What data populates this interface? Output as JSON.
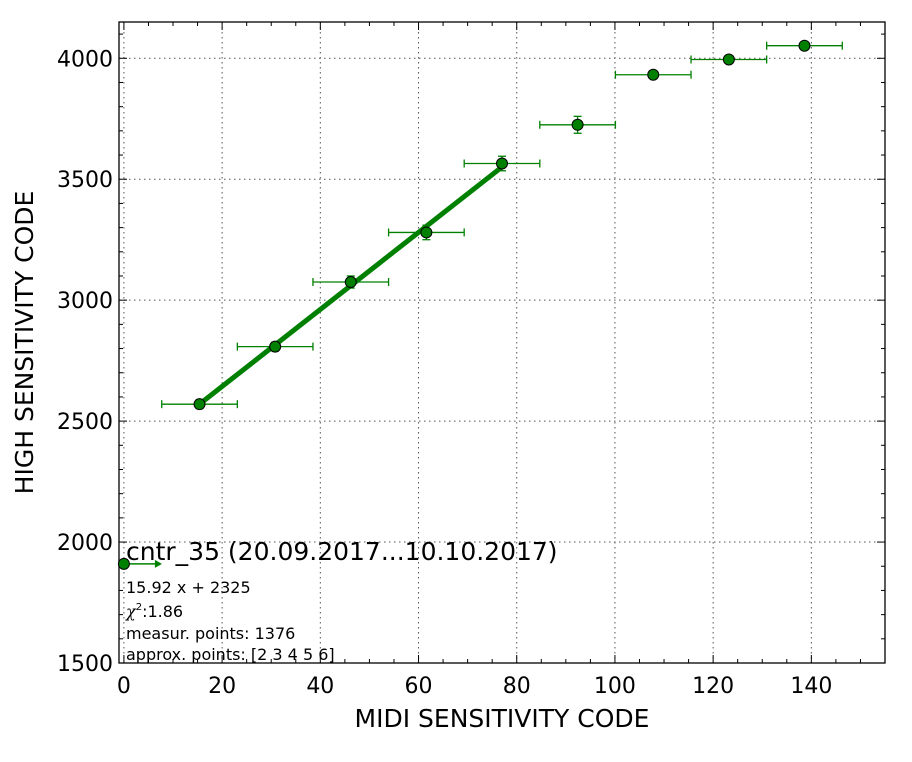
{
  "chart_data": {
    "type": "scatter",
    "xlabel": "MIDI SENSITIVITY CODE",
    "ylabel": "HIGH SENSITIVITY CODE",
    "xlim": [
      -1,
      155
    ],
    "ylim": [
      1500,
      4150
    ],
    "x_ticks": [
      0,
      20,
      40,
      60,
      80,
      100,
      120,
      140
    ],
    "y_ticks": [
      1500,
      2000,
      2500,
      3000,
      3500,
      4000
    ],
    "grid": true,
    "colors": {
      "points": "#008000",
      "fit_line": "#008000"
    },
    "series": [
      {
        "x": [
          15.4,
          30.8,
          46.2,
          61.6,
          77.0,
          92.4,
          107.8,
          123.2,
          138.6
        ],
        "y": [
          2570,
          2808,
          3075,
          3280,
          3565,
          3725,
          3932,
          3995,
          4052
        ],
        "xerr": [
          7.7,
          7.7,
          7.7,
          7.7,
          7.7,
          7.7,
          7.7,
          7.7,
          7.7
        ],
        "yerr": [
          18,
          18,
          25,
          30,
          30,
          35,
          12,
          12,
          12
        ]
      }
    ],
    "fit_line": {
      "slope": 15.92,
      "intercept": 2325,
      "x_range": [
        15.4,
        77.0
      ]
    },
    "legend_marker": {
      "x": 0,
      "y": 1910
    },
    "annotation": {
      "title": "cntr_35 (20.09.2017...10.10.2017)",
      "equation": "15.92 x + 2325",
      "chi_symbol": "χ",
      "chi_sup": "2",
      "chi_value": ":1.86",
      "measur_points": "measur. points: 1376",
      "approx_points": "approx. points: [2 3 4 5 6]"
    }
  }
}
